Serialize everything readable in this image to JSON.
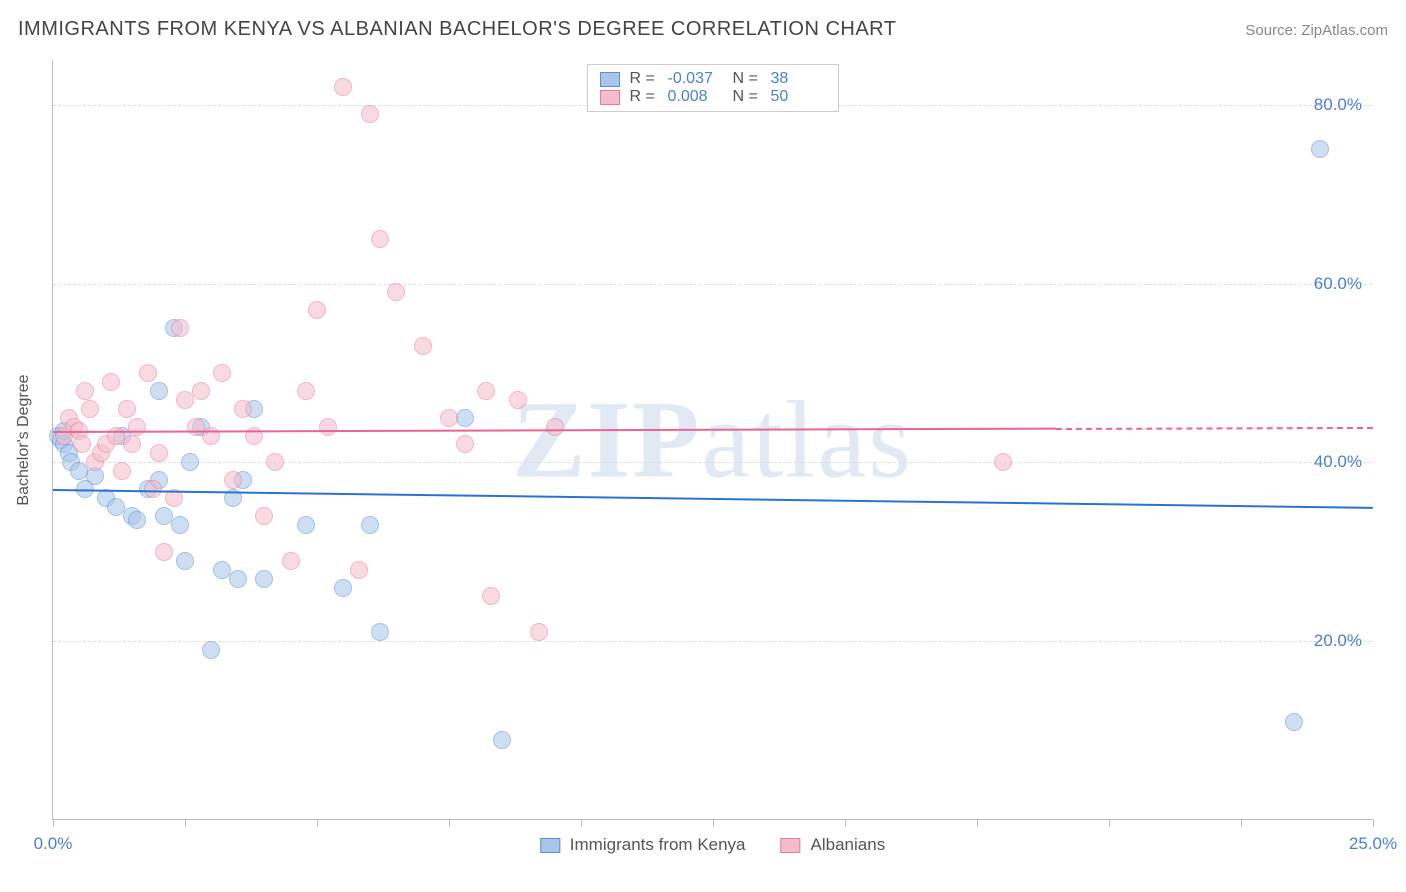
{
  "title": "IMMIGRANTS FROM KENYA VS ALBANIAN BACHELOR'S DEGREE CORRELATION CHART",
  "source_label": "Source: ",
  "source_value": "ZipAtlas.com",
  "watermark": "ZIPatlas",
  "chart": {
    "type": "scatter",
    "background_color": "#ffffff",
    "grid_color": "#dddddd",
    "axis_color": "#bbbbbb",
    "tick_label_color": "#4a7fd4",
    "axis_label_color": "#555555",
    "ylabel": "Bachelor's Degree",
    "xlabel": "",
    "xlim": [
      0,
      25
    ],
    "ylim": [
      0,
      85
    ],
    "xtick_positions": [
      0,
      2.5,
      5,
      7.5,
      10,
      12.5,
      15,
      17.5,
      20,
      22.5,
      25
    ],
    "xtick_labels": {
      "0": "0.0%",
      "25": "25.0%"
    },
    "ytick_gridlines": [
      20,
      40,
      60,
      80
    ],
    "ytick_labels": {
      "20": "20.0%",
      "40": "40.0%",
      "60": "60.0%",
      "80": "80.0%"
    },
    "marker_radius": 9,
    "marker_opacity": 0.55,
    "series": [
      {
        "key": "kenya",
        "label": "Immigrants from Kenya",
        "fill": "#a9c6ea",
        "stroke": "#5b8fd6",
        "R": "-0.037",
        "N": "38",
        "trend": {
          "y_at_x0": 37.0,
          "y_at_xmax": 35.0,
          "color": "#2b72d0",
          "width": 2
        },
        "points": [
          [
            0.1,
            43
          ],
          [
            0.15,
            42.5
          ],
          [
            0.2,
            42
          ],
          [
            0.2,
            43.5
          ],
          [
            0.3,
            41
          ],
          [
            0.35,
            40
          ],
          [
            0.5,
            39
          ],
          [
            0.6,
            37
          ],
          [
            0.8,
            38.5
          ],
          [
            1.0,
            36
          ],
          [
            1.2,
            35
          ],
          [
            1.3,
            43
          ],
          [
            1.5,
            34
          ],
          [
            1.6,
            33.5
          ],
          [
            1.8,
            37
          ],
          [
            2.0,
            48
          ],
          [
            2.0,
            38
          ],
          [
            2.1,
            34
          ],
          [
            2.3,
            55
          ],
          [
            2.4,
            33
          ],
          [
            2.5,
            29
          ],
          [
            2.6,
            40
          ],
          [
            2.8,
            44
          ],
          [
            3.0,
            19
          ],
          [
            3.2,
            28
          ],
          [
            3.4,
            36
          ],
          [
            3.5,
            27
          ],
          [
            3.6,
            38
          ],
          [
            3.8,
            46
          ],
          [
            4.0,
            27
          ],
          [
            4.8,
            33
          ],
          [
            5.5,
            26
          ],
          [
            6.0,
            33
          ],
          [
            6.2,
            21
          ],
          [
            7.8,
            45
          ],
          [
            8.5,
            9
          ],
          [
            23.5,
            11
          ],
          [
            24.0,
            75
          ]
        ]
      },
      {
        "key": "albanians",
        "label": "Albanians",
        "fill": "#f5bccb",
        "stroke": "#e97b9a",
        "R": "0.008",
        "N": "50",
        "trend": {
          "y_at_x0": 43.5,
          "y_at_xmax": 44.0,
          "color": "#e86693",
          "width": 2,
          "dash_after_x": 19
        },
        "points": [
          [
            0.2,
            43
          ],
          [
            0.3,
            45
          ],
          [
            0.4,
            44
          ],
          [
            0.5,
            43.5
          ],
          [
            0.55,
            42
          ],
          [
            0.6,
            48
          ],
          [
            0.7,
            46
          ],
          [
            0.8,
            40
          ],
          [
            0.9,
            41
          ],
          [
            1.0,
            42
          ],
          [
            1.1,
            49
          ],
          [
            1.2,
            43
          ],
          [
            1.3,
            39
          ],
          [
            1.4,
            46
          ],
          [
            1.5,
            42
          ],
          [
            1.6,
            44
          ],
          [
            1.8,
            50
          ],
          [
            1.9,
            37
          ],
          [
            2.0,
            41
          ],
          [
            2.1,
            30
          ],
          [
            2.3,
            36
          ],
          [
            2.4,
            55
          ],
          [
            2.5,
            47
          ],
          [
            2.7,
            44
          ],
          [
            2.8,
            48
          ],
          [
            3.0,
            43
          ],
          [
            3.2,
            50
          ],
          [
            3.4,
            38
          ],
          [
            3.6,
            46
          ],
          [
            3.8,
            43
          ],
          [
            4.0,
            34
          ],
          [
            4.2,
            40
          ],
          [
            4.5,
            29
          ],
          [
            4.8,
            48
          ],
          [
            5.0,
            57
          ],
          [
            5.2,
            44
          ],
          [
            5.5,
            82
          ],
          [
            5.8,
            28
          ],
          [
            6.0,
            79
          ],
          [
            6.2,
            65
          ],
          [
            6.5,
            59
          ],
          [
            7.0,
            53
          ],
          [
            7.5,
            45
          ],
          [
            7.8,
            42
          ],
          [
            8.2,
            48
          ],
          [
            8.3,
            25
          ],
          [
            8.8,
            47
          ],
          [
            9.2,
            21
          ],
          [
            9.5,
            44
          ],
          [
            18.0,
            40
          ]
        ]
      }
    ],
    "legend_top": {
      "border_color": "#cccccc",
      "R_label": "R =",
      "N_label": "N ="
    }
  }
}
